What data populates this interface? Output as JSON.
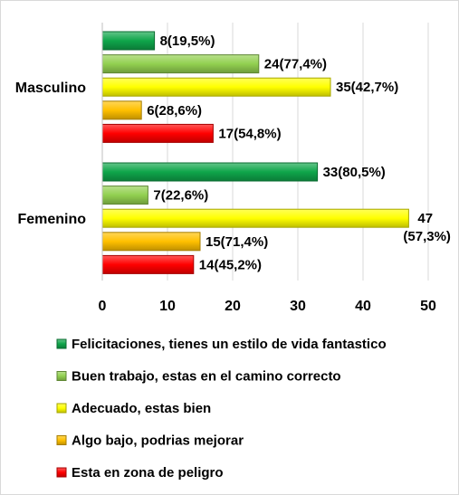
{
  "chart_data": {
    "type": "bar",
    "orientation": "horizontal",
    "categories": [
      "Masculino",
      "Femenino"
    ],
    "xlim": [
      0,
      50
    ],
    "xticks": [
      0,
      10,
      20,
      30,
      40,
      50
    ],
    "grid": true,
    "legend_position": "bottom",
    "series": [
      {
        "name": "Felicitaciones, tienes un estilo de vida fantastico",
        "color": "#0fa54a",
        "values": [
          8,
          33
        ],
        "labels": [
          "8(19,5%)",
          "33(80,5%)"
        ]
      },
      {
        "name": "Buen trabajo, estas en el camino correcto",
        "color": "#92d050",
        "values": [
          24,
          7
        ],
        "labels": [
          "24(77,4%)",
          "7(22,6%)"
        ]
      },
      {
        "name": "Adecuado, estas bien",
        "color": "#ffff00",
        "values": [
          35,
          47
        ],
        "labels": [
          "35(42,7%)",
          "47 (57,3%)"
        ]
      },
      {
        "name": "Algo bajo, podrias mejorar",
        "color": "#ffc000",
        "values": [
          6,
          15
        ],
        "labels": [
          "6(28,6%)",
          "15(71,4%)"
        ]
      },
      {
        "name": "Esta en zona de peligro",
        "color": "#ff0000",
        "values": [
          17,
          14
        ],
        "labels": [
          "17(54,8%)",
          "14(45,2%)"
        ]
      }
    ]
  }
}
